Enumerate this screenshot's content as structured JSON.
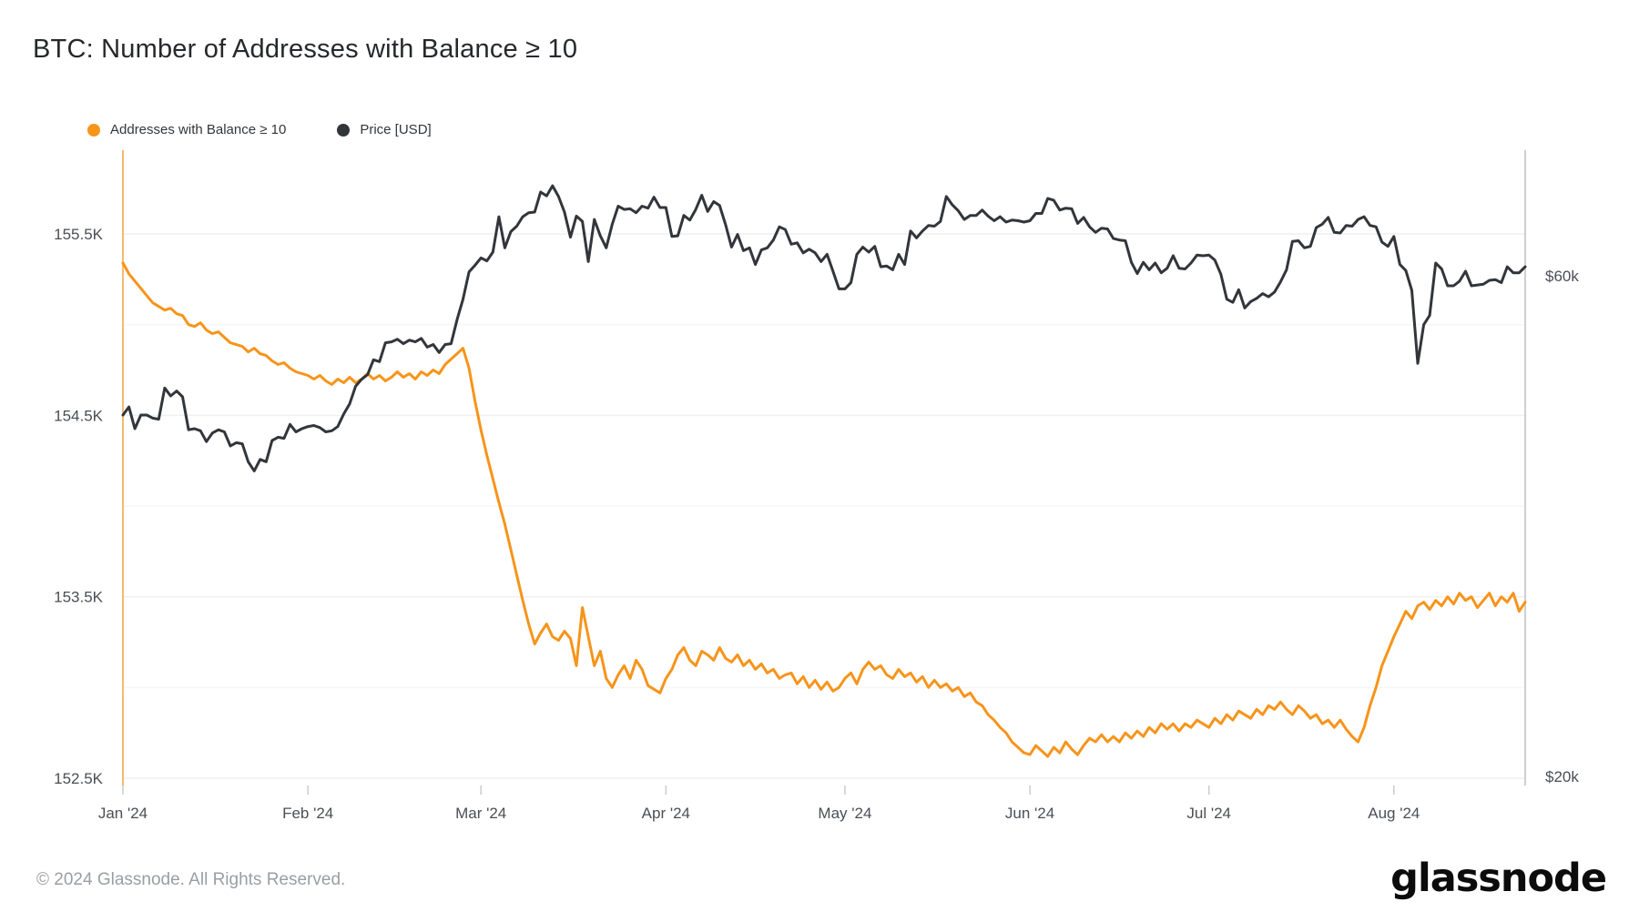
{
  "title": "BTC: Number of Addresses with Balance ≥ 10",
  "legend": {
    "series1_label": "Addresses with Balance ≥ 10",
    "series2_label": "Price [USD]"
  },
  "footer": {
    "copyright": "© 2024 Glassnode. All Rights Reserved."
  },
  "logo_text": "glassnode",
  "colors": {
    "addresses_line": "#F7941A",
    "price_line": "#32363B",
    "left_axis_line": "#F6BA72",
    "right_axis_line": "#BDBFC1",
    "gridline_major": "#eef0f1",
    "gridline_minor": "#f6f7f8",
    "tick_text": "#4b4f54",
    "month_tick": "#c9ccce",
    "background": "#ffffff"
  },
  "chart_data": {
    "type": "line",
    "title": "BTC: Number of Addresses with Balance ≥ 10",
    "x_unit": "daily, Jan 1 2024 – Aug 23 2024 (day index from Jan 1)",
    "x_ticks": [
      {
        "label": "Jan '24",
        "day": 0
      },
      {
        "label": "Feb '24",
        "day": 31
      },
      {
        "label": "Mar '24",
        "day": 60
      },
      {
        "label": "Apr '24",
        "day": 91
      },
      {
        "label": "May '24",
        "day": 121
      },
      {
        "label": "Jun '24",
        "day": 152
      },
      {
        "label": "Jul '24",
        "day": 182
      },
      {
        "label": "Aug '24",
        "day": 213
      }
    ],
    "left_axis": {
      "unit": "addresses (thousands)",
      "tick_labels": [
        "155.5K",
        "154.5K",
        "153.5K",
        "152.5K"
      ],
      "tick_values": [
        155.5,
        154.5,
        153.5,
        152.5
      ],
      "minor_gridline_values": [
        155.0,
        154.0,
        153.0
      ],
      "range": [
        152.46,
        155.96
      ],
      "scale": "linear"
    },
    "right_axis": {
      "unit": "USD (thousands)",
      "tick_labels": [
        "$60k",
        "$20k"
      ],
      "tick_values": [
        60,
        20
      ],
      "range_at_ticks_px_aligned": true,
      "scale": "log"
    },
    "series": [
      {
        "name": "Addresses with Balance ≥ 10",
        "axis": "left",
        "color": "#F7941A",
        "values": [
          155.34,
          155.28,
          155.24,
          155.2,
          155.16,
          155.12,
          155.1,
          155.08,
          155.09,
          155.06,
          155.05,
          155.0,
          154.99,
          155.01,
          154.97,
          154.95,
          154.96,
          154.93,
          154.9,
          154.89,
          154.88,
          154.85,
          154.87,
          154.84,
          154.83,
          154.8,
          154.78,
          154.79,
          154.76,
          154.74,
          154.73,
          154.72,
          154.7,
          154.72,
          154.69,
          154.67,
          154.7,
          154.68,
          154.71,
          154.68,
          154.7,
          154.73,
          154.7,
          154.72,
          154.69,
          154.71,
          154.74,
          154.71,
          154.73,
          154.7,
          154.74,
          154.72,
          154.75,
          154.73,
          154.78,
          154.81,
          154.84,
          154.87,
          154.76,
          154.58,
          154.42,
          154.28,
          154.15,
          154.02,
          153.9,
          153.76,
          153.62,
          153.48,
          153.35,
          153.24,
          153.3,
          153.35,
          153.28,
          153.26,
          153.31,
          153.27,
          153.12,
          153.44,
          153.28,
          153.12,
          153.2,
          153.05,
          153.0,
          153.07,
          153.12,
          153.05,
          153.15,
          153.1,
          153.01,
          152.99,
          152.97,
          153.05,
          153.1,
          153.18,
          153.22,
          153.15,
          153.12,
          153.2,
          153.18,
          153.15,
          153.22,
          153.16,
          153.14,
          153.18,
          153.12,
          153.15,
          153.1,
          153.13,
          153.08,
          153.1,
          153.05,
          153.07,
          153.08,
          153.02,
          153.06,
          153.0,
          153.04,
          152.99,
          153.03,
          152.98,
          153.0,
          153.05,
          153.08,
          153.02,
          153.1,
          153.14,
          153.1,
          153.12,
          153.07,
          153.05,
          153.1,
          153.06,
          153.08,
          153.03,
          153.06,
          153.0,
          153.04,
          153.0,
          153.02,
          152.98,
          153.0,
          152.95,
          152.97,
          152.92,
          152.9,
          152.85,
          152.82,
          152.78,
          152.75,
          152.7,
          152.67,
          152.64,
          152.63,
          152.68,
          152.65,
          152.62,
          152.67,
          152.64,
          152.7,
          152.66,
          152.63,
          152.68,
          152.72,
          152.7,
          152.74,
          152.7,
          152.73,
          152.7,
          152.75,
          152.72,
          152.76,
          152.73,
          152.78,
          152.75,
          152.8,
          152.77,
          152.8,
          152.76,
          152.8,
          152.78,
          152.82,
          152.8,
          152.78,
          152.83,
          152.8,
          152.85,
          152.82,
          152.87,
          152.85,
          152.83,
          152.88,
          152.85,
          152.9,
          152.88,
          152.92,
          152.88,
          152.85,
          152.9,
          152.87,
          152.83,
          152.85,
          152.8,
          152.82,
          152.78,
          152.82,
          152.77,
          152.73,
          152.7,
          152.78,
          152.9,
          153.0,
          153.12,
          153.2,
          153.28,
          153.35,
          153.42,
          153.38,
          153.45,
          153.47,
          153.43,
          153.48,
          153.45,
          153.5,
          153.46,
          153.52,
          153.48,
          153.5,
          153.44,
          153.48,
          153.52,
          153.45,
          153.5,
          153.47,
          153.52,
          153.42,
          153.47
        ]
      },
      {
        "name": "Price [USD]",
        "axis": "right",
        "color": "#32363B",
        "values": [
          44.2,
          45.0,
          42.9,
          44.2,
          44.2,
          43.9,
          43.8,
          46.9,
          46.1,
          46.6,
          46.0,
          42.8,
          42.9,
          42.7,
          41.7,
          42.5,
          42.8,
          42.6,
          41.3,
          41.6,
          41.5,
          39.9,
          39.1,
          40.1,
          39.9,
          41.8,
          42.1,
          42.0,
          43.3,
          42.6,
          42.9,
          43.1,
          43.2,
          43.0,
          42.6,
          42.7,
          43.1,
          44.3,
          45.3,
          47.1,
          47.8,
          48.3,
          49.9,
          49.7,
          51.8,
          51.9,
          52.2,
          51.7,
          52.1,
          51.9,
          52.3,
          51.3,
          51.6,
          50.7,
          51.6,
          51.7,
          54.5,
          57.0,
          60.5,
          61.4,
          62.4,
          62.0,
          63.2,
          68.3,
          63.8,
          66.1,
          66.9,
          68.3,
          68.9,
          69.0,
          72.1,
          71.5,
          73.1,
          71.4,
          69.0,
          65.3,
          68.4,
          67.6,
          61.9,
          67.9,
          65.5,
          63.8,
          67.2,
          69.9,
          69.4,
          69.5,
          68.9,
          69.9,
          69.6,
          71.3,
          69.7,
          69.7,
          65.4,
          65.5,
          68.5,
          67.8,
          69.4,
          71.6,
          69.1,
          70.6,
          70.0,
          67.1,
          63.9,
          65.7,
          63.4,
          63.8,
          61.5,
          63.5,
          63.8,
          64.9,
          66.8,
          66.4,
          64.3,
          64.5,
          63.1,
          63.6,
          63.1,
          61.9,
          62.9,
          60.6,
          58.3,
          58.3,
          59.1,
          62.9,
          63.9,
          63.2,
          64.0,
          61.2,
          61.3,
          60.8,
          62.9,
          61.5,
          66.2,
          65.2,
          66.2,
          67.0,
          66.9,
          67.6,
          71.4,
          70.1,
          69.2,
          67.9,
          68.5,
          68.5,
          69.3,
          68.4,
          67.7,
          68.3,
          67.5,
          67.8,
          67.7,
          67.5,
          67.7,
          68.8,
          68.8,
          71.1,
          70.8,
          69.3,
          69.6,
          69.5,
          67.3,
          68.2,
          66.8,
          66.0,
          66.6,
          66.5,
          65.1,
          64.9,
          64.8,
          61.8,
          60.3,
          61.8,
          60.8,
          61.7,
          60.4,
          61.0,
          62.7,
          61.0,
          60.9,
          61.7,
          62.8,
          62.7,
          62.8,
          62.1,
          60.2,
          57.0,
          56.6,
          58.2,
          55.9,
          56.7,
          57.1,
          57.7,
          57.3,
          57.9,
          59.2,
          60.8,
          64.7,
          64.8,
          63.8,
          64.0,
          66.7,
          67.2,
          68.2,
          66.0,
          65.9,
          67.0,
          66.9,
          67.9,
          68.3,
          67.0,
          66.8,
          64.6,
          64.0,
          65.4,
          61.5,
          60.7,
          58.1,
          49.5,
          53.9,
          55.0,
          61.7,
          60.9,
          58.7,
          58.7,
          59.3,
          60.6,
          58.7,
          58.8,
          58.9,
          59.4,
          59.5,
          59.1,
          61.2,
          60.4,
          60.4,
          61.2
        ]
      }
    ],
    "legend_position": "top-left",
    "grid": "horizontal-only"
  }
}
